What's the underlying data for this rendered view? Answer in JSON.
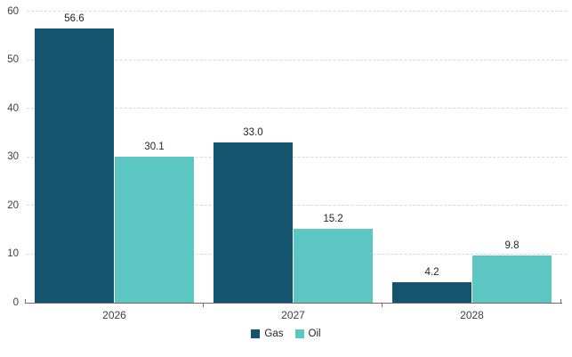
{
  "chart_data": {
    "type": "bar",
    "variant": "clustered-column",
    "title": "",
    "xlabel": "",
    "ylabel": "",
    "categories": [
      "2026",
      "2027",
      "2028"
    ],
    "series": [
      {
        "name": "Gas",
        "color": "#14546F",
        "values": [
          56.6,
          33.0,
          4.2
        ],
        "labels": [
          "56.6",
          "33.0",
          "4.2"
        ]
      },
      {
        "name": "Oil",
        "color": "#5BC6C2",
        "values": [
          30.1,
          15.2,
          9.8
        ],
        "labels": [
          "30.1",
          "15.2",
          "9.8"
        ]
      }
    ],
    "ylim": [
      0,
      60
    ],
    "ytick_interval": 10,
    "ytick_labels": [
      "0",
      "10",
      "20",
      "30",
      "40",
      "50",
      "60"
    ],
    "grid": "horizontal-dashed",
    "legend_position": "bottom-center"
  },
  "style_colors": {
    "gas_bar": "#14546F",
    "oil_bar": "#5BC6C2",
    "gridline": "#D9D9D9",
    "axis_line": "#6E6E6E",
    "axis_text": "#404040",
    "value_label_text": "#252423",
    "background": "#FFFFFF"
  }
}
